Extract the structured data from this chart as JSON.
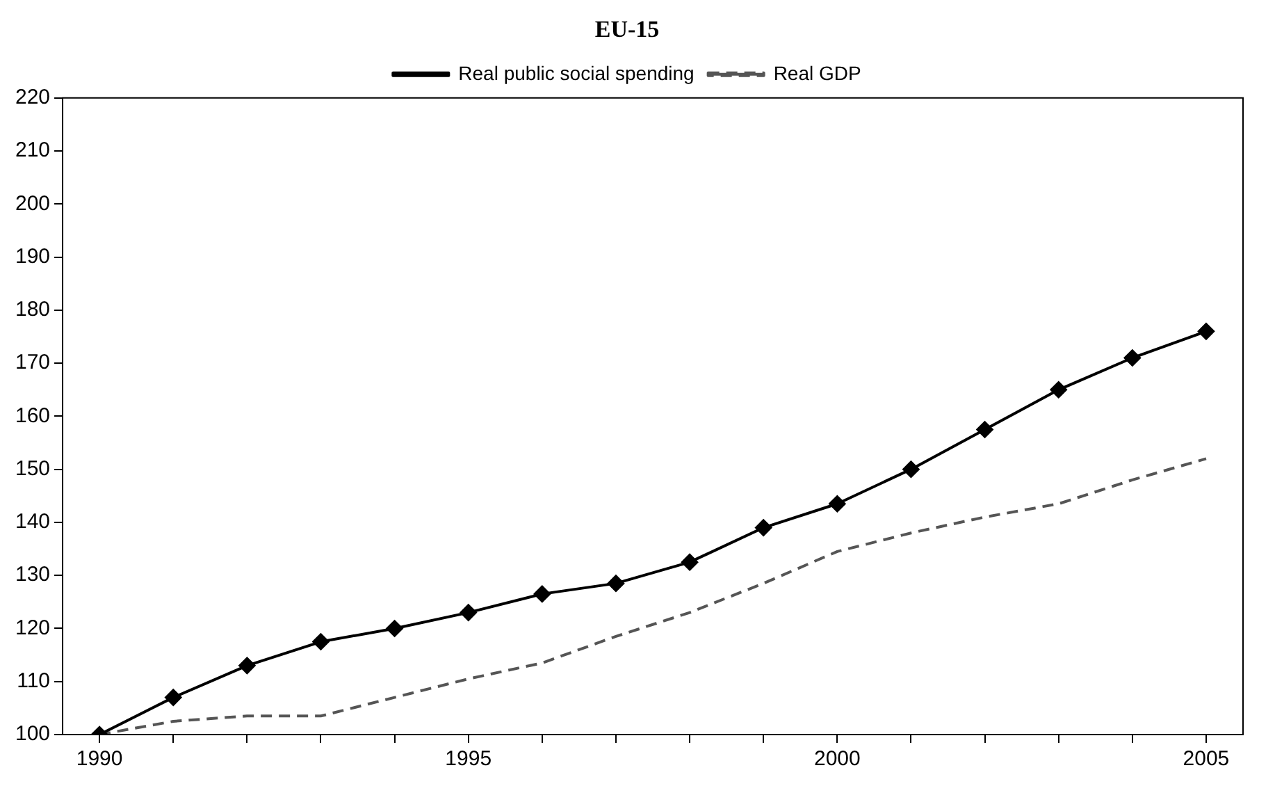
{
  "chart_data": {
    "type": "line",
    "title": "EU-15",
    "categories": [
      "1990",
      null,
      null,
      null,
      null,
      "1995",
      null,
      null,
      null,
      null,
      "2000",
      null,
      null,
      null,
      null,
      "2005"
    ],
    "series": [
      {
        "name": "Real public social spending",
        "color": "#000000",
        "marker": "diamond",
        "line_style": "solid",
        "values": [
          100,
          107,
          113,
          117.5,
          120,
          123,
          126.5,
          128.5,
          132.5,
          139,
          143.5,
          150,
          157.5,
          165,
          171,
          176
        ]
      },
      {
        "name": "Real GDP",
        "color": "#555555",
        "marker": "none",
        "line_style": "dashed",
        "values": [
          100,
          102.5,
          103.5,
          103.5,
          107,
          110.5,
          113.5,
          118.5,
          123,
          128.5,
          134.5,
          138,
          141,
          143.5,
          148,
          152
        ]
      }
    ],
    "ylim": [
      100,
      220
    ],
    "yticks": [
      100,
      110,
      120,
      130,
      140,
      150,
      160,
      170,
      180,
      190,
      200,
      210,
      220
    ],
    "grid": false,
    "legend": "top"
  }
}
